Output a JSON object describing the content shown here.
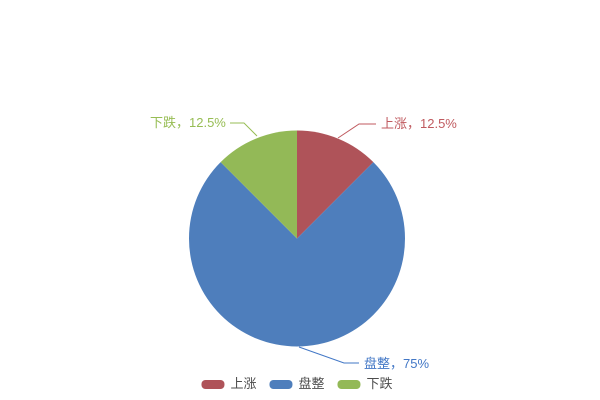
{
  "chart_data": {
    "type": "pie",
    "title": "",
    "legend_position": "bottom",
    "background_color": "#ffffff",
    "legend_text_color": "#4d4d4d",
    "start_angle": "12-o-clock, clockwise",
    "slices": [
      {
        "name": "上涨",
        "value": 12.5,
        "percent_label": "上涨，12.5%",
        "color": "#af5359",
        "label_color": "#c05a5f"
      },
      {
        "name": "盘整",
        "value": 75,
        "percent_label": "盘整，75%",
        "color": "#4e7ebc",
        "label_color": "#4277c6"
      },
      {
        "name": "下跌",
        "value": 12.5,
        "percent_label": "下跌，12.5%",
        "color": "#93b957",
        "label_color": "#97bd54"
      }
    ]
  }
}
